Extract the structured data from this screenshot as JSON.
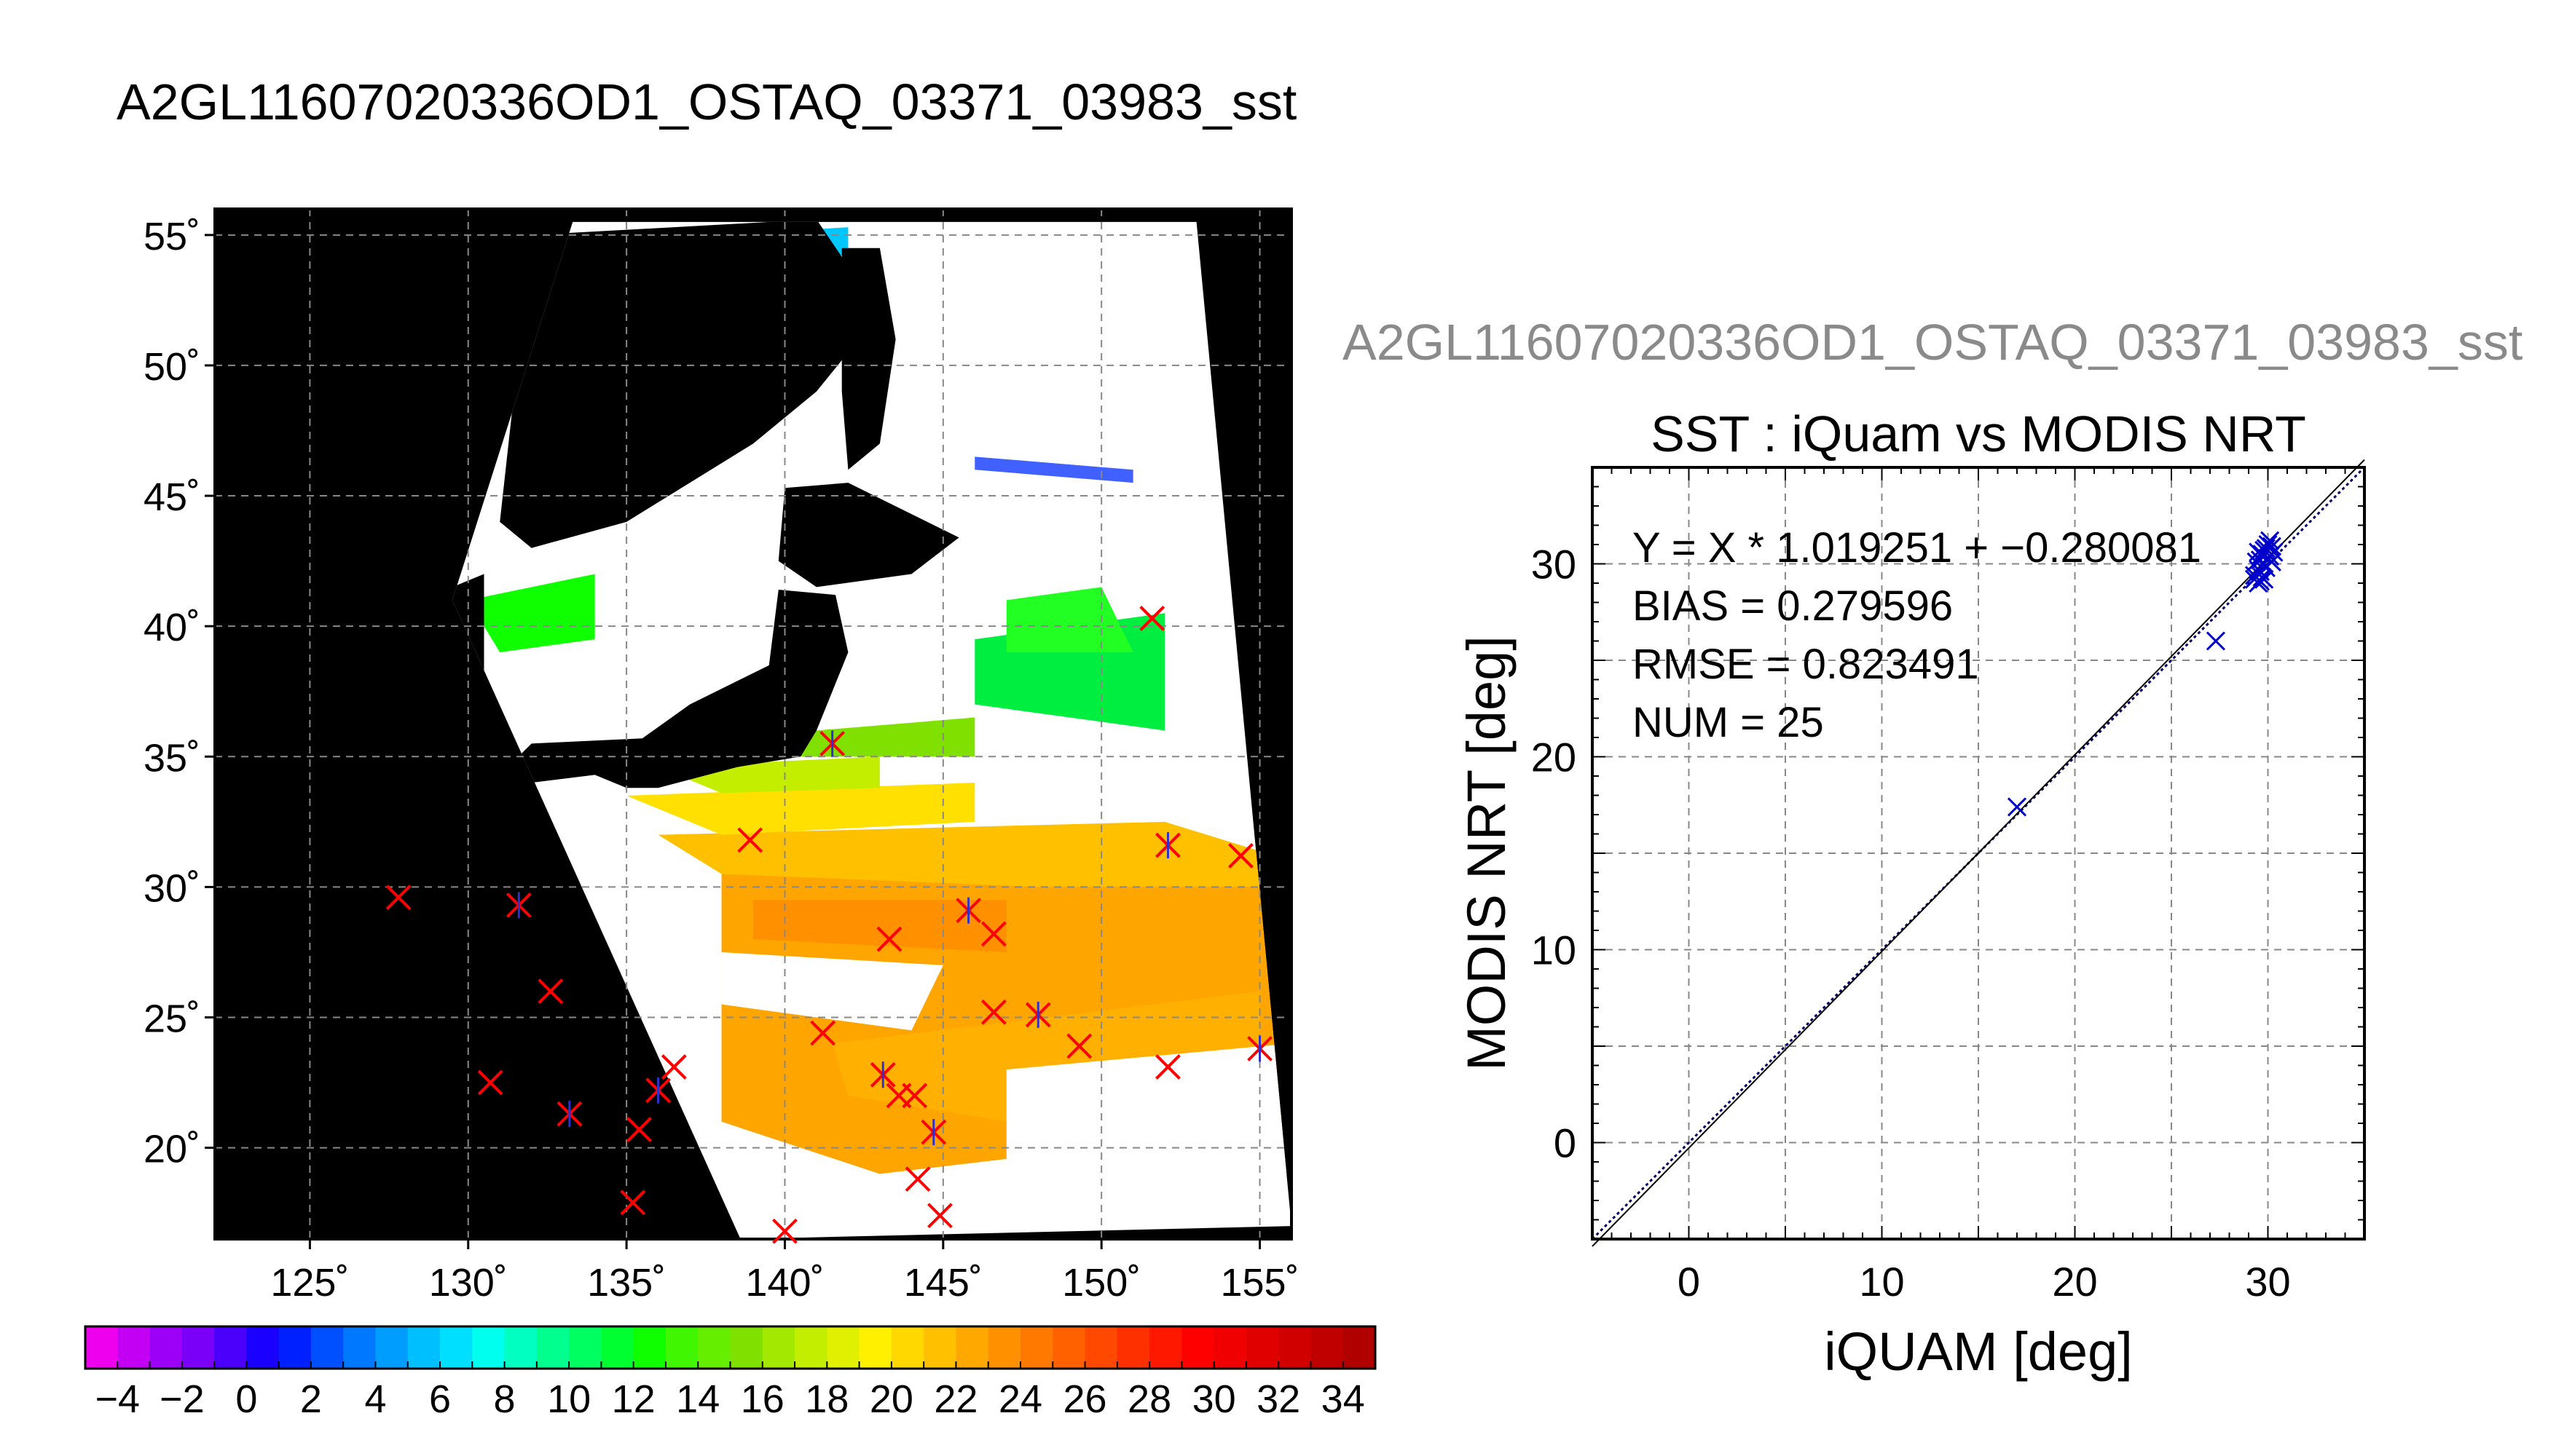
{
  "page_title": "A2GL11607020336OD1_OSTAQ_03371_03983_sst",
  "chart_data": [
    {
      "type": "map",
      "title": "A2GL11607020336OD1_OSTAQ_03371_03983_sst",
      "lon_range": [
        122,
        156
      ],
      "lat_range": [
        16.5,
        56
      ],
      "lon_ticks": [
        125,
        130,
        135,
        140,
        145,
        150,
        155
      ],
      "lon_tick_labels": [
        "125˚",
        "130˚",
        "135˚",
        "140˚",
        "145˚",
        "150˚",
        "155˚"
      ],
      "lat_ticks": [
        20,
        25,
        30,
        35,
        40,
        45,
        50,
        55
      ],
      "lat_tick_labels": [
        "20˚",
        "25˚",
        "30˚",
        "35˚",
        "40˚",
        "45˚",
        "50˚",
        "55˚"
      ],
      "grid": true,
      "swath_corners_lonlat": [
        [
          129.5,
          41.0
        ],
        [
          133.3,
          55.5
        ],
        [
          153.0,
          55.5
        ],
        [
          156.0,
          17.0
        ],
        [
          138.6,
          16.5
        ]
      ],
      "matchup_markers_lonlat": [
        [
          127.8,
          29.6
        ],
        [
          131.6,
          29.3
        ],
        [
          132.6,
          26.0
        ],
        [
          130.7,
          22.5
        ],
        [
          133.2,
          21.3
        ],
        [
          135.4,
          20.7
        ],
        [
          135.2,
          17.9
        ],
        [
          136.0,
          22.2
        ],
        [
          136.5,
          23.1
        ],
        [
          138.9,
          31.8
        ],
        [
          141.5,
          35.5
        ],
        [
          143.3,
          28.0
        ],
        [
          141.2,
          24.4
        ],
        [
          143.1,
          22.8
        ],
        [
          143.6,
          22.0
        ],
        [
          144.1,
          22.0
        ],
        [
          144.7,
          20.6
        ],
        [
          144.2,
          18.8
        ],
        [
          144.9,
          17.4
        ],
        [
          145.8,
          29.1
        ],
        [
          146.6,
          28.2
        ],
        [
          146.6,
          25.2
        ],
        [
          148.0,
          25.1
        ],
        [
          149.3,
          23.9
        ],
        [
          151.6,
          40.3
        ],
        [
          152.1,
          31.6
        ],
        [
          152.1,
          23.1
        ],
        [
          154.4,
          31.2
        ],
        [
          155.0,
          23.8
        ],
        [
          140.0,
          16.8
        ]
      ],
      "colorbar": {
        "min": -5,
        "max": 35,
        "step": 1,
        "tick_labels": [
          "−4",
          "−2",
          "0",
          "2",
          "4",
          "6",
          "8",
          "10",
          "12",
          "14",
          "16",
          "18",
          "20",
          "22",
          "24",
          "26",
          "28",
          "30",
          "32",
          "34"
        ],
        "tick_values": [
          -4,
          -2,
          0,
          2,
          4,
          6,
          8,
          10,
          12,
          14,
          16,
          18,
          20,
          22,
          24,
          26,
          28,
          30,
          32,
          34
        ],
        "colors": [
          "#ee00ee",
          "#c400f4",
          "#9d00f6",
          "#7a00f8",
          "#4a00fb",
          "#1a00ff",
          "#0020ff",
          "#0050ff",
          "#0078ff",
          "#009dff",
          "#00bfff",
          "#00dfff",
          "#00ffee",
          "#00ffc0",
          "#00ff8f",
          "#00ff60",
          "#00ff30",
          "#10ff00",
          "#40f600",
          "#66ee00",
          "#80e000",
          "#a2e800",
          "#c4ee00",
          "#e0f000",
          "#fff000",
          "#ffd800",
          "#ffc000",
          "#ffa800",
          "#ff9000",
          "#ff7800",
          "#ff6000",
          "#ff4800",
          "#ff3000",
          "#ff1800",
          "#ff0000",
          "#f00000",
          "#e00000",
          "#d00000",
          "#c00000",
          "#b00000"
        ]
      },
      "colors": {
        "land": "#000000",
        "cloud": "#ffffff",
        "marker_main": "#ff0000",
        "marker_alt": "#3030cc",
        "grid": "#888888"
      }
    },
    {
      "type": "scatter",
      "title": "SST : iQuam vs MODIS NRT",
      "subtitle": "A2GL11607020336OD1_OSTAQ_03371_03983_sst",
      "xlabel": "iQUAM [deg]",
      "ylabel": "MODIS NRT [deg]",
      "xlim": [
        -5,
        35
      ],
      "ylim": [
        -5,
        35
      ],
      "x_ticks": [
        0,
        10,
        20,
        30
      ],
      "y_ticks": [
        0,
        10,
        20,
        30
      ],
      "grid": true,
      "annotations": [
        "Y = X * 1.019251 + −0.280081",
        "BIAS = 0.279596",
        "RMSE = 0.823491",
        "NUM = 25"
      ],
      "fit": {
        "slope": 1.019251,
        "intercept": -0.280081
      },
      "points": [
        {
          "x": 17.0,
          "y": 17.4
        },
        {
          "x": 27.3,
          "y": 26.0
        },
        {
          "x": 29.3,
          "y": 29.4
        },
        {
          "x": 29.5,
          "y": 29.7
        },
        {
          "x": 29.6,
          "y": 30.2
        },
        {
          "x": 29.7,
          "y": 30.5
        },
        {
          "x": 29.8,
          "y": 30.0
        },
        {
          "x": 29.9,
          "y": 30.8
        },
        {
          "x": 30.0,
          "y": 31.0
        },
        {
          "x": 30.1,
          "y": 30.4
        },
        {
          "x": 29.5,
          "y": 29.0
        },
        {
          "x": 29.8,
          "y": 29.2
        },
        {
          "x": 30.2,
          "y": 30.9
        },
        {
          "x": 29.6,
          "y": 29.6
        },
        {
          "x": 30.3,
          "y": 30.6
        },
        {
          "x": 29.4,
          "y": 30.1
        },
        {
          "x": 29.9,
          "y": 29.8
        },
        {
          "x": 30.0,
          "y": 30.3
        },
        {
          "x": 29.7,
          "y": 29.3
        },
        {
          "x": 29.5,
          "y": 30.6
        },
        {
          "x": 30.1,
          "y": 31.2
        },
        {
          "x": 29.8,
          "y": 30.7
        },
        {
          "x": 29.6,
          "y": 29.1
        },
        {
          "x": 30.2,
          "y": 30.1
        },
        {
          "x": 29.3,
          "y": 29.2
        }
      ],
      "colors": {
        "points": "#0000cc",
        "fit_line": "#000000",
        "one_to_one": "#000066",
        "grid": "#888888"
      }
    }
  ]
}
